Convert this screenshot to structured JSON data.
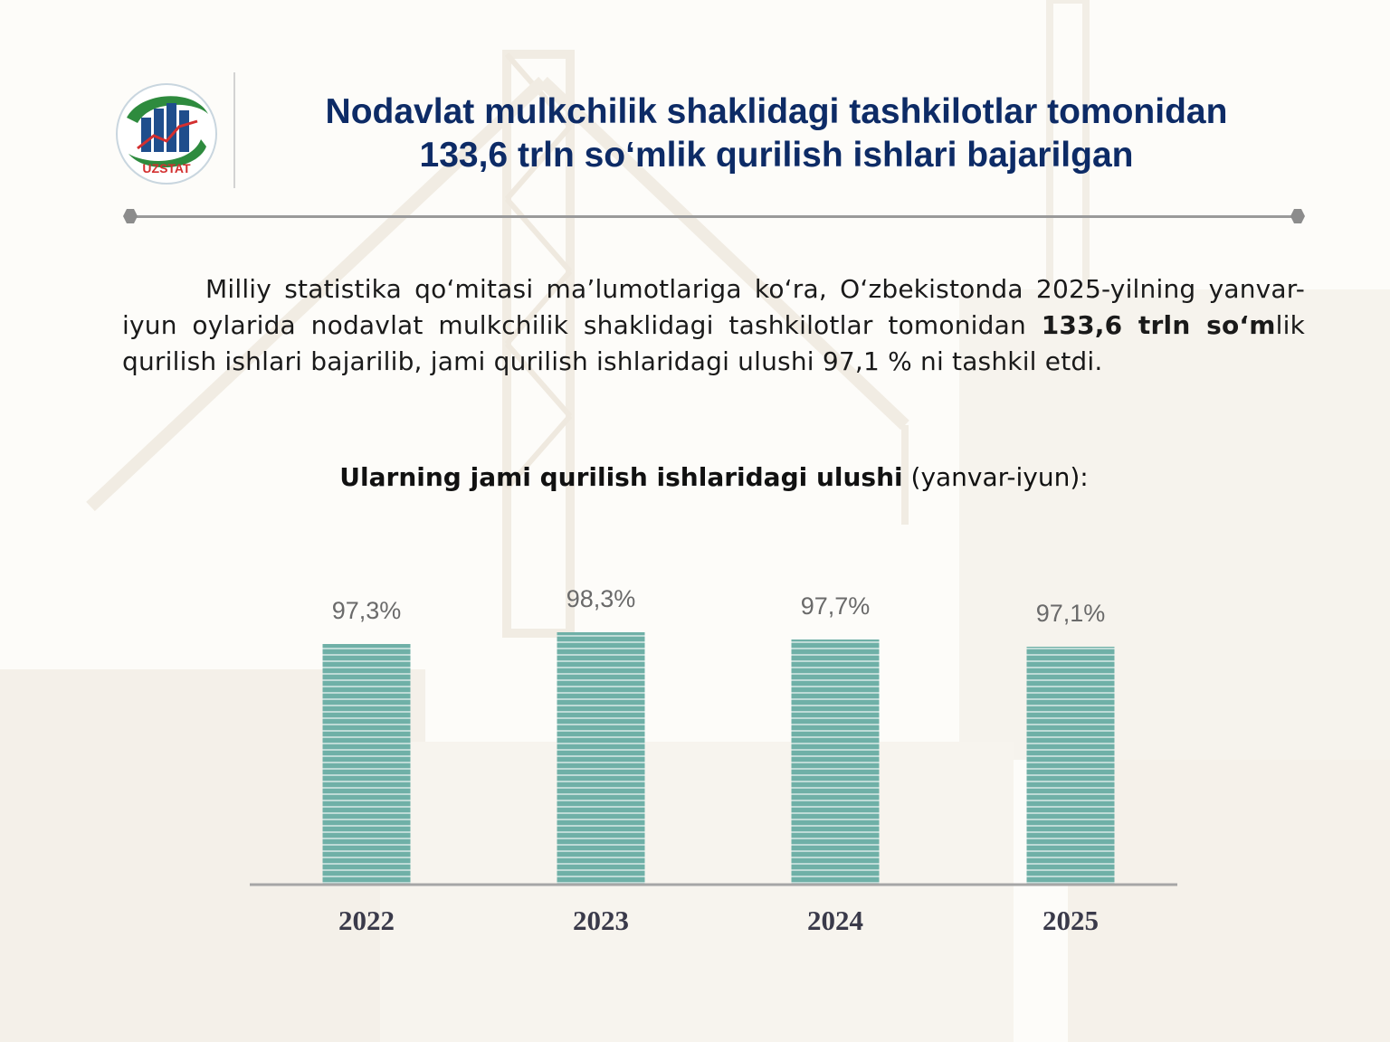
{
  "header": {
    "logo_text": "UZSTAT",
    "title_line1": "Nodavlat mulkchilik shaklidagi tashkilotlar tomonidan",
    "title_line2": "133,6 trln so‘mlik qurilish ishlari bajarilgan"
  },
  "paragraph": {
    "part1": "Milliy statistika qo‘mitasi ma’lumotlariga ko‘ra, O‘zbekistonda 2025-yilning yanvar-iyun oylarida nodavlat mulkchilik shaklidagi tashkilotlar tomonidan ",
    "bold": "133,6 trln so‘m",
    "part2": "lik qurilish ishlari bajarilib, jami qurilish ishlaridagi ulushi 97,1 % ni tashkil etdi."
  },
  "colors": {
    "title": "#0d2b66",
    "bar": "#6fb0a7",
    "bar_stripe": "#ffffff",
    "axis": "#a6a6a6",
    "logo_green": "#2e8b3e",
    "logo_blue": "#1f4e8c",
    "logo_red": "#d32f2f"
  },
  "chart_data": {
    "type": "bar",
    "title_bold": "Ularning jami qurilish ishlaridagi ulushi",
    "title_rest": " (yanvar-iyun):",
    "categories": [
      "2022",
      "2023",
      "2024",
      "2025"
    ],
    "values": [
      97.3,
      98.3,
      97.7,
      97.1
    ],
    "value_labels": [
      "97,3%",
      "98,3%",
      "97,7%",
      "97,1%"
    ],
    "ylim": [
      0,
      100
    ],
    "grid": false,
    "legend": "none"
  }
}
